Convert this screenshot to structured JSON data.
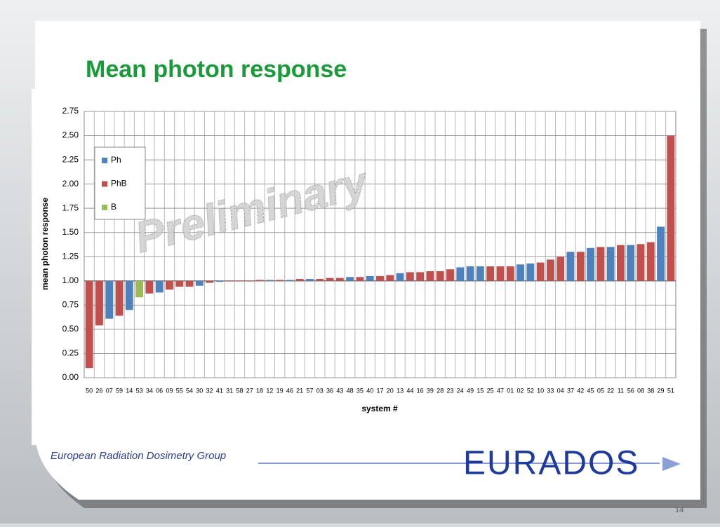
{
  "chart_data": {
    "type": "bar",
    "title": "Mean photon response",
    "watermark": "Preliminary",
    "xlabel": "system #",
    "ylabel": "mean photon response",
    "categories": [
      "50",
      "26",
      "07",
      "59",
      "14",
      "53",
      "34",
      "06",
      "09",
      "55",
      "54",
      "30",
      "32",
      "41",
      "31",
      "58",
      "27",
      "18",
      "12",
      "19",
      "46",
      "21",
      "57",
      "03",
      "36",
      "43",
      "48",
      "35",
      "40",
      "17",
      "20",
      "13",
      "44",
      "16",
      "39",
      "28",
      "23",
      "24",
      "49",
      "15",
      "25",
      "47",
      "01",
      "02",
      "52",
      "10",
      "33",
      "04",
      "37",
      "42",
      "45",
      "05",
      "22",
      "11",
      "56",
      "08",
      "38",
      "29",
      "51"
    ],
    "series": [
      {
        "name": "Ph",
        "color": "#4f81bd",
        "values": [
          null,
          null,
          0.61,
          null,
          0.7,
          null,
          null,
          0.88,
          null,
          null,
          null,
          0.95,
          null,
          0.99,
          null,
          null,
          null,
          null,
          1.01,
          null,
          1.01,
          null,
          1.02,
          null,
          null,
          null,
          1.04,
          null,
          1.05,
          null,
          null,
          1.08,
          null,
          null,
          null,
          null,
          null,
          1.14,
          1.15,
          1.15,
          null,
          null,
          null,
          1.17,
          1.18,
          null,
          null,
          null,
          1.3,
          null,
          1.34,
          null,
          1.35,
          null,
          1.37,
          null,
          null,
          1.56,
          null
        ]
      },
      {
        "name": "PhB",
        "color": "#c0504d",
        "values": [
          0.1,
          0.54,
          null,
          0.64,
          null,
          null,
          0.87,
          null,
          0.91,
          0.94,
          0.94,
          null,
          0.98,
          null,
          1.0,
          1.0,
          1.0,
          1.01,
          null,
          1.01,
          null,
          1.02,
          null,
          1.02,
          1.03,
          1.03,
          null,
          1.04,
          null,
          1.05,
          1.06,
          null,
          1.09,
          1.09,
          1.1,
          1.1,
          1.12,
          null,
          null,
          null,
          1.15,
          1.15,
          1.15,
          null,
          null,
          1.19,
          1.22,
          1.25,
          null,
          1.3,
          null,
          1.35,
          null,
          1.37,
          null,
          1.38,
          1.4,
          null,
          2.5
        ]
      },
      {
        "name": "B",
        "color": "#9bbb59",
        "values": [
          null,
          null,
          null,
          null,
          null,
          0.83,
          null,
          null,
          null,
          null,
          null,
          null,
          null,
          null,
          null,
          null,
          null,
          null,
          null,
          null,
          null,
          null,
          null,
          null,
          null,
          null,
          null,
          null,
          null,
          null,
          null,
          null,
          null,
          null,
          null,
          null,
          null,
          null,
          null,
          null,
          null,
          null,
          null,
          null,
          null,
          null,
          null,
          null,
          null,
          null,
          null,
          null,
          null,
          null,
          null,
          null,
          null,
          null,
          null
        ]
      }
    ],
    "baseline": 1,
    "ylim": [
      0,
      2.75
    ],
    "yticks": [
      {
        "value": 0,
        "label": "0.00"
      },
      0.25,
      {
        "value": 0.5,
        "label": "0.50"
      },
      0.75,
      {
        "value": 1,
        "label": "1.00"
      },
      1.25,
      {
        "value": 1.5,
        "label": "1.50"
      },
      1.75,
      {
        "value": 2,
        "label": "2.00"
      },
      2.25,
      {
        "value": 2.5,
        "label": "2.50"
      },
      2.75
    ],
    "grid": true,
    "legend": "upper left"
  },
  "footer": {
    "organization": "European Radiation Dosimetry Group",
    "logo": "EURADOS",
    "page": "14"
  }
}
